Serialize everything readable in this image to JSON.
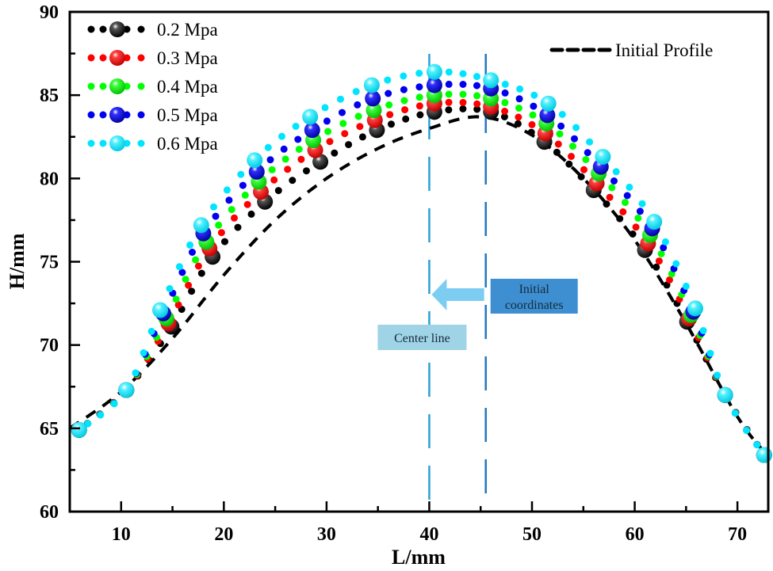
{
  "chart_data": {
    "type": "scatter",
    "title": "",
    "xlabel": "L/mm",
    "ylabel": "H/mm",
    "xlim": [
      5,
      73
    ],
    "ylim": [
      60,
      90
    ],
    "xticks": [
      10,
      20,
      30,
      40,
      50,
      60,
      70
    ],
    "yticks": [
      60,
      65,
      70,
      75,
      80,
      85,
      90
    ],
    "grid": false,
    "legend_position": "top-left",
    "series": [
      {
        "name": "0.2 Mpa",
        "color": "#000000",
        "x": [
          5.9,
          10.5,
          14.9,
          18.9,
          24.0,
          29.4,
          34.9,
          40.5,
          46.0,
          51.2,
          56.0,
          61.0,
          65.1,
          68.8,
          72.6
        ],
        "y": [
          64.9,
          67.3,
          71.1,
          75.3,
          78.6,
          81.0,
          82.9,
          84.0,
          84.0,
          82.2,
          79.3,
          75.7,
          71.4,
          67.0,
          63.4
        ]
      },
      {
        "name": "0.3 Mpa",
        "color": "#ff0000",
        "x": [
          5.9,
          10.5,
          14.6,
          18.6,
          23.6,
          28.9,
          34.7,
          40.5,
          46.0,
          51.3,
          56.3,
          61.3,
          65.3,
          68.8,
          72.6
        ],
        "y": [
          64.9,
          67.3,
          71.3,
          75.8,
          79.2,
          81.7,
          83.5,
          84.5,
          84.3,
          82.7,
          79.7,
          76.1,
          71.6,
          67.0,
          63.4
        ]
      },
      {
        "name": "0.4 Mpa",
        "color": "#00ff00",
        "x": [
          5.9,
          10.5,
          14.4,
          18.3,
          23.4,
          28.7,
          34.6,
          40.5,
          46.0,
          51.4,
          56.5,
          61.5,
          65.5,
          68.8,
          72.6
        ],
        "y": [
          64.9,
          67.3,
          71.6,
          76.2,
          79.8,
          82.3,
          84.1,
          85.0,
          84.8,
          83.3,
          80.3,
          76.6,
          71.8,
          67.0,
          63.4
        ]
      },
      {
        "name": "0.5 Mpa",
        "color": "#0000ee",
        "x": [
          5.9,
          10.5,
          14.1,
          18.0,
          23.2,
          28.6,
          34.5,
          40.5,
          46.0,
          51.5,
          56.7,
          61.7,
          65.7,
          68.8,
          72.6
        ],
        "y": [
          64.9,
          67.3,
          71.9,
          76.7,
          80.4,
          82.9,
          84.8,
          85.6,
          85.4,
          83.8,
          80.7,
          77.0,
          72.0,
          67.0,
          63.4
        ]
      },
      {
        "name": "0.6 Mpa",
        "color": "#00e5ff",
        "x": [
          5.9,
          10.5,
          13.8,
          17.8,
          23.0,
          28.4,
          34.4,
          40.5,
          46.0,
          51.6,
          56.9,
          61.9,
          65.9,
          68.8,
          72.6
        ],
        "y": [
          64.9,
          67.3,
          72.1,
          77.2,
          81.1,
          83.7,
          85.6,
          86.4,
          85.9,
          84.5,
          81.3,
          77.4,
          72.2,
          67.0,
          63.4
        ]
      },
      {
        "name": "Initial Profile",
        "color": "#000000",
        "style": "dashed",
        "x": [
          5.0,
          10.0,
          15.0,
          20.0,
          25.0,
          30.0,
          35.0,
          40.0,
          45.0,
          50.0,
          55.0,
          60.0,
          65.0,
          70.0,
          73.0
        ],
        "y": [
          65.0,
          67.2,
          70.4,
          74.2,
          77.5,
          80.0,
          81.8,
          83.0,
          83.7,
          82.6,
          80.0,
          76.3,
          71.3,
          65.7,
          63.3
        ]
      }
    ],
    "reference_lines": [
      {
        "name": "Center line",
        "x": 40,
        "color": "#2aa0d6"
      },
      {
        "name": "Initial coordinates",
        "x": 45.5,
        "color": "#1f78c0"
      }
    ],
    "annotations": {
      "center_label": "Center line",
      "initial_label_line1": "Initial",
      "initial_label_line2": "coordinates",
      "center_box_color": "#9fd3e6",
      "initial_box_color": "#3d8fd1",
      "arrow_color": "#7dcdf2"
    }
  }
}
